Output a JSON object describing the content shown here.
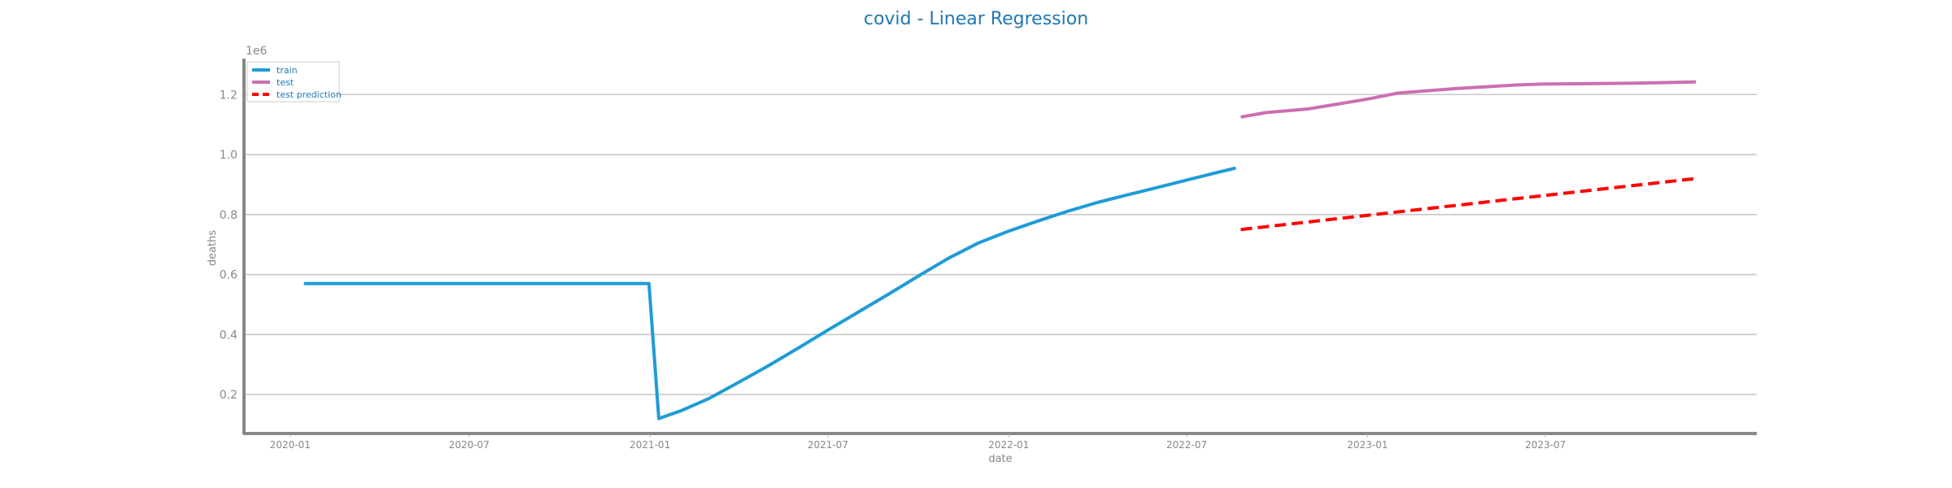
{
  "chart_data": {
    "type": "line",
    "title": "covid - Linear Regression",
    "xlabel": "date",
    "ylabel": "deaths",
    "y_offset_label": "1e6",
    "y_scale": 1000000,
    "xlim": [
      "2019-11-15",
      "2024-02-01"
    ],
    "ylim": [
      0.07,
      1.32
    ],
    "x_ticks": [
      "2020-01",
      "2020-07",
      "2021-01",
      "2021-07",
      "2022-01",
      "2022-07",
      "2023-01",
      "2023-07"
    ],
    "y_ticks": [
      0.2,
      0.4,
      0.6,
      0.8,
      1.0,
      1.2
    ],
    "grid": true,
    "legend_position": "top-left",
    "series": [
      {
        "name": "train",
        "color": "#1f9bd7",
        "style": "solid",
        "points": [
          [
            "2020-01-15",
            0.57
          ],
          [
            "2020-07-01",
            0.57
          ],
          [
            "2020-12-31",
            0.57
          ],
          [
            "2021-01-10",
            0.12
          ],
          [
            "2021-02-01",
            0.145
          ],
          [
            "2021-03-01",
            0.185
          ],
          [
            "2021-04-01",
            0.24
          ],
          [
            "2021-05-01",
            0.295
          ],
          [
            "2021-06-01",
            0.355
          ],
          [
            "2021-07-01",
            0.415
          ],
          [
            "2021-08-01",
            0.475
          ],
          [
            "2021-09-01",
            0.535
          ],
          [
            "2021-10-01",
            0.595
          ],
          [
            "2021-11-01",
            0.655
          ],
          [
            "2021-12-01",
            0.705
          ],
          [
            "2022-01-01",
            0.745
          ],
          [
            "2022-02-01",
            0.78
          ],
          [
            "2022-03-01",
            0.81
          ],
          [
            "2022-04-01",
            0.84
          ],
          [
            "2022-05-01",
            0.865
          ],
          [
            "2022-06-01",
            0.89
          ],
          [
            "2022-07-01",
            0.915
          ],
          [
            "2022-08-01",
            0.94
          ],
          [
            "2022-08-20",
            0.955
          ]
        ]
      },
      {
        "name": "test",
        "color": "#cc6fb0",
        "style": "solid",
        "points": [
          [
            "2022-08-25",
            1.125
          ],
          [
            "2022-09-20",
            1.14
          ],
          [
            "2022-11-01",
            1.152
          ],
          [
            "2022-12-01",
            1.168
          ],
          [
            "2023-01-01",
            1.185
          ],
          [
            "2023-02-01",
            1.205
          ],
          [
            "2023-03-01",
            1.212
          ],
          [
            "2023-04-01",
            1.22
          ],
          [
            "2023-05-01",
            1.226
          ],
          [
            "2023-06-01",
            1.232
          ],
          [
            "2023-07-01",
            1.235
          ],
          [
            "2023-08-01",
            1.236
          ],
          [
            "2023-09-01",
            1.237
          ],
          [
            "2023-10-01",
            1.238
          ],
          [
            "2023-11-01",
            1.24
          ],
          [
            "2023-12-01",
            1.242
          ]
        ]
      },
      {
        "name": "test prediction",
        "color": "#ff0000",
        "style": "dashed",
        "points": [
          [
            "2022-08-25",
            0.75
          ],
          [
            "2023-12-01",
            0.92
          ]
        ]
      }
    ]
  }
}
